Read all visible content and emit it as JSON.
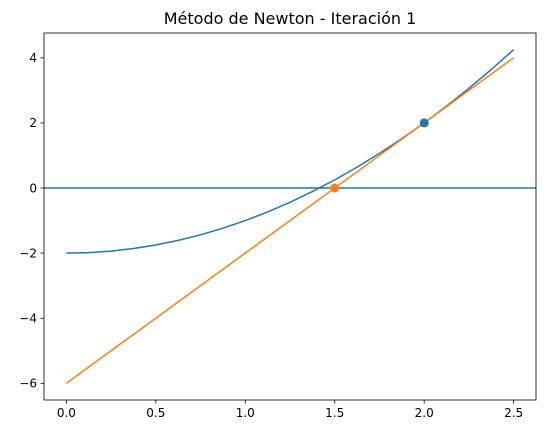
{
  "chart_data": {
    "type": "line",
    "title": "Método de Newton - Iteración 1",
    "xlabel": "",
    "ylabel": "",
    "xlim": [
      -0.125,
      2.625
    ],
    "ylim": [
      -6.5125,
      4.7625
    ],
    "x_ticks": [
      0.0,
      0.5,
      1.0,
      1.5,
      2.0,
      2.5
    ],
    "x_tick_labels": [
      "0.0",
      "0.5",
      "1.0",
      "1.5",
      "2.0",
      "2.5"
    ],
    "y_ticks": [
      -6,
      -4,
      -2,
      0,
      2,
      4
    ],
    "y_tick_labels": [
      "−6",
      "−4",
      "−2",
      "0",
      "2",
      "4"
    ],
    "grid": false,
    "legend": "none",
    "series": [
      {
        "kind": "curve",
        "color": "#1f77b4",
        "x": [
          0.0,
          0.125,
          0.25,
          0.375,
          0.5,
          0.625,
          0.75,
          0.875,
          1.0,
          1.125,
          1.25,
          1.375,
          1.5,
          1.625,
          1.75,
          1.875,
          2.0,
          2.125,
          2.25,
          2.375,
          2.5
        ],
        "y": [
          -2.0,
          -1.984,
          -1.938,
          -1.859,
          -1.75,
          -1.609,
          -1.438,
          -1.234,
          -1.0,
          -0.734,
          -0.438,
          -0.109,
          0.25,
          0.641,
          1.063,
          1.516,
          2.0,
          2.516,
          3.063,
          3.641,
          4.25
        ]
      },
      {
        "kind": "hline",
        "color": "#1f77b4",
        "y": 0
      },
      {
        "kind": "tangent",
        "color": "#ff7f0e",
        "x": [
          0.0,
          2.5
        ],
        "y": [
          -6.0,
          4.0
        ]
      }
    ],
    "points": [
      {
        "x": 2.0,
        "y": 2.0,
        "color": "#1f77b4"
      },
      {
        "x": 1.5,
        "y": 0.0,
        "color": "#ff7f0e"
      }
    ]
  }
}
